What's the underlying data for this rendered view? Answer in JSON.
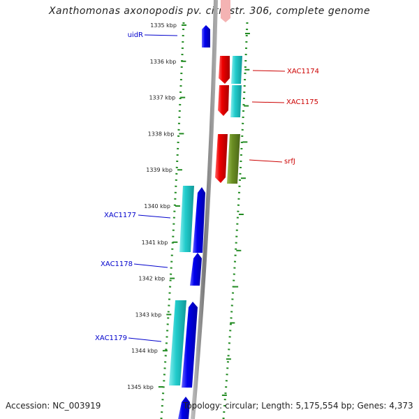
{
  "title": "Xanthomonas axonopodis pv. citri str. 306, complete genome",
  "accession": "Accession: NC_003919",
  "summary": "Topology: circular; Length: 5,175,554 bp; Genes: 4,373",
  "ticks": [
    "1335 kbp",
    "1336 kbp",
    "1337 kbp",
    "1338 kbp",
    "1339 kbp",
    "1340 kbp",
    "1341 kbp",
    "1342 kbp",
    "1343 kbp",
    "1344 kbp",
    "1345 kbp"
  ],
  "labels": {
    "uidR": "uidR",
    "xac1174": "XAC1174",
    "xac1175": "XAC1175",
    "srfJ": "srfJ",
    "xac1177": "XAC1177",
    "xac1178": "XAC1178",
    "xac1179": "XAC1179"
  },
  "colors": {
    "forward_gene": "#0000ee",
    "reverse_gene": "#ee0000",
    "cyan_feature": "#22cccc",
    "olive_feature": "#6b8e23",
    "backbone": "#8a8a8a",
    "tick": "#228b22",
    "left_label": "#0000cc",
    "right_label": "#cc0000"
  }
}
